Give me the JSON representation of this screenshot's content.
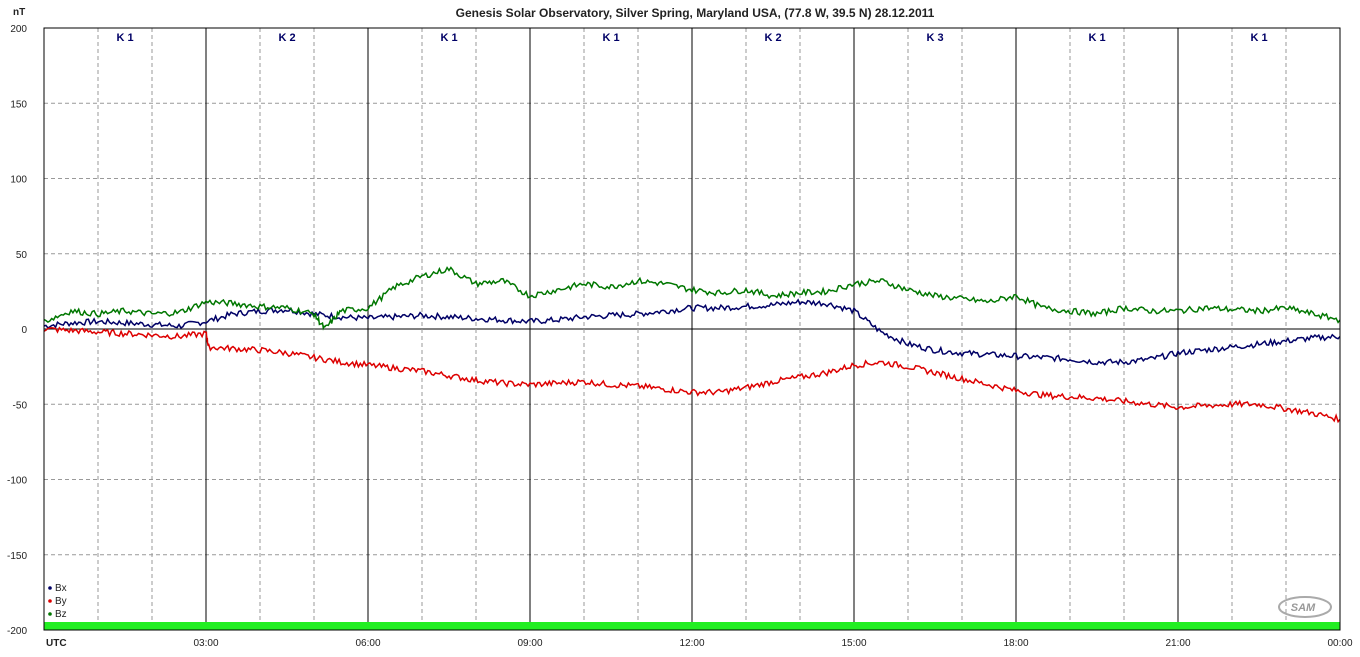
{
  "chart_data": {
    "type": "line",
    "title": "Genesis Solar Observatory, Silver Spring, Maryland USA, (77.8 W, 39.5 N)  28.12.2011",
    "ylabel": "nT",
    "xlabel": "UTC",
    "ylim": [
      -200,
      200
    ],
    "yticks": [
      "200",
      "150",
      "100",
      "50",
      "0",
      "-50",
      "-100",
      "-150",
      "-200"
    ],
    "xlim_hours": [
      0,
      24
    ],
    "xticks": [
      "03:00",
      "06:00",
      "09:00",
      "12:00",
      "15:00",
      "18:00",
      "21:00",
      "00:00"
    ],
    "grid": true,
    "legend_position": "bottom-left",
    "k_index": [
      "K 1",
      "K 2",
      "K 1",
      "K 1",
      "K 2",
      "K 3",
      "K 1",
      "K 1"
    ],
    "series": [
      {
        "name": "Bx",
        "color": "#000066",
        "x_hours": [
          0,
          0.5,
          1,
          1.5,
          2,
          2.5,
          3,
          3.5,
          4,
          4.5,
          5,
          5.5,
          6,
          6.5,
          7,
          7.5,
          8,
          8.5,
          9,
          9.5,
          10,
          10.5,
          11,
          11.5,
          12,
          12.5,
          13,
          13.5,
          14,
          14.5,
          15,
          15.5,
          16,
          16.5,
          17,
          17.5,
          18,
          18.5,
          19,
          19.5,
          20,
          20.5,
          21,
          21.5,
          22,
          22.5,
          23,
          23.5,
          24
        ],
        "values": [
          2,
          4,
          5,
          4,
          3,
          2,
          5,
          10,
          12,
          13,
          10,
          8,
          7,
          8,
          9,
          8,
          7,
          6,
          5,
          6,
          8,
          9,
          10,
          12,
          14,
          14,
          15,
          16,
          18,
          17,
          12,
          -2,
          -10,
          -14,
          -16,
          -17,
          -18,
          -19,
          -20,
          -22,
          -22,
          -20,
          -16,
          -14,
          -12,
          -10,
          -8,
          -6,
          -5
        ]
      },
      {
        "name": "By",
        "color": "#dd0000",
        "x_hours": [
          0,
          0.5,
          1,
          1.5,
          2,
          2.5,
          3,
          3.05,
          3.5,
          4,
          4.5,
          5,
          5.5,
          6,
          6.5,
          7,
          7.5,
          8,
          8.5,
          9,
          9.5,
          10,
          10.5,
          11,
          11.5,
          12,
          12.5,
          13,
          13.5,
          14,
          14.5,
          15,
          15.5,
          16,
          16.5,
          17,
          17.5,
          18,
          18.5,
          19,
          19.5,
          20,
          20.5,
          21,
          21.5,
          22,
          22.5,
          23,
          23.5,
          24
        ],
        "values": [
          0,
          -1,
          -2,
          -3,
          -4,
          -5,
          -3,
          -12,
          -13,
          -14,
          -16,
          -19,
          -22,
          -24,
          -26,
          -28,
          -31,
          -34,
          -36,
          -37,
          -36,
          -35,
          -37,
          -38,
          -40,
          -42,
          -42,
          -39,
          -35,
          -32,
          -29,
          -24,
          -22,
          -25,
          -29,
          -33,
          -37,
          -41,
          -44,
          -45,
          -46,
          -48,
          -50,
          -52,
          -51,
          -50,
          -50,
          -53,
          -56,
          -60
        ]
      },
      {
        "name": "Bz",
        "color": "#007700",
        "x_hours": [
          0,
          0.5,
          1,
          1.5,
          2,
          2.5,
          3,
          3.5,
          4,
          4.5,
          5,
          5.2,
          5.5,
          6,
          6.5,
          7,
          7.5,
          8,
          8.5,
          9,
          9.5,
          10,
          10.5,
          11,
          11.5,
          12,
          12.5,
          13,
          13.5,
          14,
          14.5,
          15,
          15.5,
          16,
          16.5,
          17,
          17.5,
          18,
          18.5,
          19,
          19.5,
          20,
          20.5,
          21,
          21.5,
          22,
          22.5,
          23,
          23.5,
          24
        ],
        "values": [
          5,
          12,
          10,
          12,
          10,
          11,
          18,
          17,
          15,
          14,
          10,
          0,
          12,
          14,
          28,
          35,
          40,
          30,
          32,
          22,
          26,
          30,
          28,
          32,
          30,
          26,
          24,
          26,
          22,
          24,
          25,
          30,
          32,
          26,
          22,
          20,
          18,
          22,
          14,
          12,
          10,
          14,
          12,
          12,
          14,
          13,
          12,
          14,
          10,
          6
        ]
      }
    ]
  },
  "watermark": "SAM"
}
